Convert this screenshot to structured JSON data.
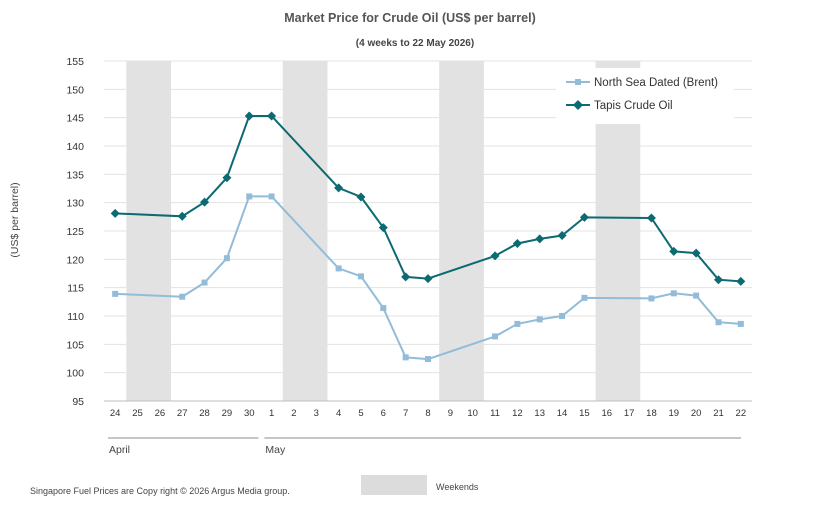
{
  "chart_data": {
    "type": "line",
    "title": "Market Price for Crude  Oil (US$ per barrel)",
    "subtitle": "(4 weeks to 22 May 2026)",
    "ylabel": "(US$ per barrel)",
    "ylim": [
      95,
      155
    ],
    "yticks": [
      95,
      100,
      105,
      110,
      115,
      120,
      125,
      130,
      135,
      140,
      145,
      150,
      155
    ],
    "grid": true,
    "legend_position": "top-right",
    "x": [
      "24",
      "25",
      "26",
      "27",
      "28",
      "29",
      "30",
      "1",
      "2",
      "3",
      "4",
      "5",
      "6",
      "7",
      "8",
      "9",
      "10",
      "11",
      "12",
      "13",
      "14",
      "15",
      "16",
      "17",
      "18",
      "19",
      "20",
      "21",
      "22"
    ],
    "months": [
      {
        "label": "April",
        "start": "24",
        "end": "30"
      },
      {
        "label": "May",
        "start": "1",
        "end": "22"
      }
    ],
    "weekends": [
      [
        "25",
        "26"
      ],
      [
        "2",
        "3"
      ],
      [
        "9",
        "10"
      ],
      [
        "16",
        "17"
      ]
    ],
    "weekend_label": "Weekends",
    "series": [
      {
        "name": "North Sea Dated (Brent)",
        "color": "#92bcd8",
        "marker": "square",
        "points": [
          {
            "x": "24",
            "y": 113.9
          },
          {
            "x": "27",
            "y": 113.4
          },
          {
            "x": "28",
            "y": 115.9
          },
          {
            "x": "29",
            "y": 120.2
          },
          {
            "x": "30",
            "y": 131.1
          },
          {
            "x": "1",
            "y": 131.1
          },
          {
            "x": "4",
            "y": 118.4
          },
          {
            "x": "5",
            "y": 117.0
          },
          {
            "x": "6",
            "y": 111.4
          },
          {
            "x": "7",
            "y": 102.7
          },
          {
            "x": "8",
            "y": 102.4
          },
          {
            "x": "11",
            "y": 106.4
          },
          {
            "x": "12",
            "y": 108.6
          },
          {
            "x": "13",
            "y": 109.4
          },
          {
            "x": "14",
            "y": 110.0
          },
          {
            "x": "15",
            "y": 113.2
          },
          {
            "x": "18",
            "y": 113.1
          },
          {
            "x": "19",
            "y": 114.0
          },
          {
            "x": "20",
            "y": 113.6
          },
          {
            "x": "21",
            "y": 108.9
          },
          {
            "x": "22",
            "y": 108.6
          }
        ]
      },
      {
        "name": "Tapis Crude Oil",
        "color": "#0c6a72",
        "marker": "diamond",
        "points": [
          {
            "x": "24",
            "y": 128.1
          },
          {
            "x": "27",
            "y": 127.6
          },
          {
            "x": "28",
            "y": 130.1
          },
          {
            "x": "29",
            "y": 134.4
          },
          {
            "x": "30",
            "y": 145.3
          },
          {
            "x": "1",
            "y": 145.3
          },
          {
            "x": "4",
            "y": 132.6
          },
          {
            "x": "5",
            "y": 131.0
          },
          {
            "x": "6",
            "y": 125.6
          },
          {
            "x": "7",
            "y": 116.9
          },
          {
            "x": "8",
            "y": 116.6
          },
          {
            "x": "11",
            "y": 120.6
          },
          {
            "x": "12",
            "y": 122.8
          },
          {
            "x": "13",
            "y": 123.6
          },
          {
            "x": "14",
            "y": 124.2
          },
          {
            "x": "15",
            "y": 127.4
          },
          {
            "x": "18",
            "y": 127.3
          },
          {
            "x": "19",
            "y": 121.4
          },
          {
            "x": "20",
            "y": 121.1
          },
          {
            "x": "21",
            "y": 116.4
          },
          {
            "x": "22",
            "y": 116.1
          }
        ]
      }
    ]
  },
  "footer": "Singapore  Fuel Prices are  Copy right © 2026 Argus Media  group."
}
